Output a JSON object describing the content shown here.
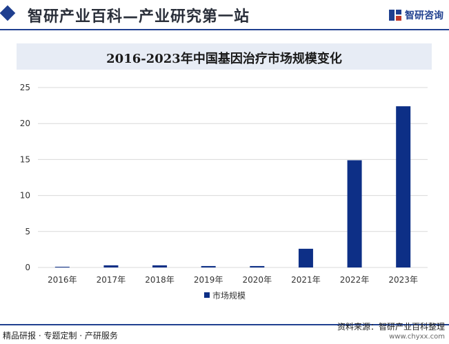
{
  "header": {
    "title": "智研产业百科—产业研究第一站",
    "brand": "智研咨询",
    "accent_color": "#1f3f8f"
  },
  "footer": {
    "left_text": "精品研报 · 专题定制 · 产研服务",
    "source": "资料来源：智研产业百科整理",
    "url": "www.chyxx.com"
  },
  "chart_data": {
    "type": "bar",
    "title": "2016-2023年中国基因治疗市场规模变化",
    "categories": [
      "2016年",
      "2017年",
      "2018年",
      "2019年",
      "2020年",
      "2021年",
      "2022年",
      "2023年"
    ],
    "series": [
      {
        "name": "市场规模",
        "values": [
          0.1,
          0.3,
          0.3,
          0.2,
          0.2,
          2.6,
          14.9,
          22.4
        ],
        "color": "#0d2f86"
      }
    ],
    "y_ticks": [
      "0",
      "5",
      "10",
      "15",
      "20",
      "25"
    ],
    "ylim": [
      0,
      25
    ],
    "grid": true,
    "legend_position": "bottom"
  }
}
